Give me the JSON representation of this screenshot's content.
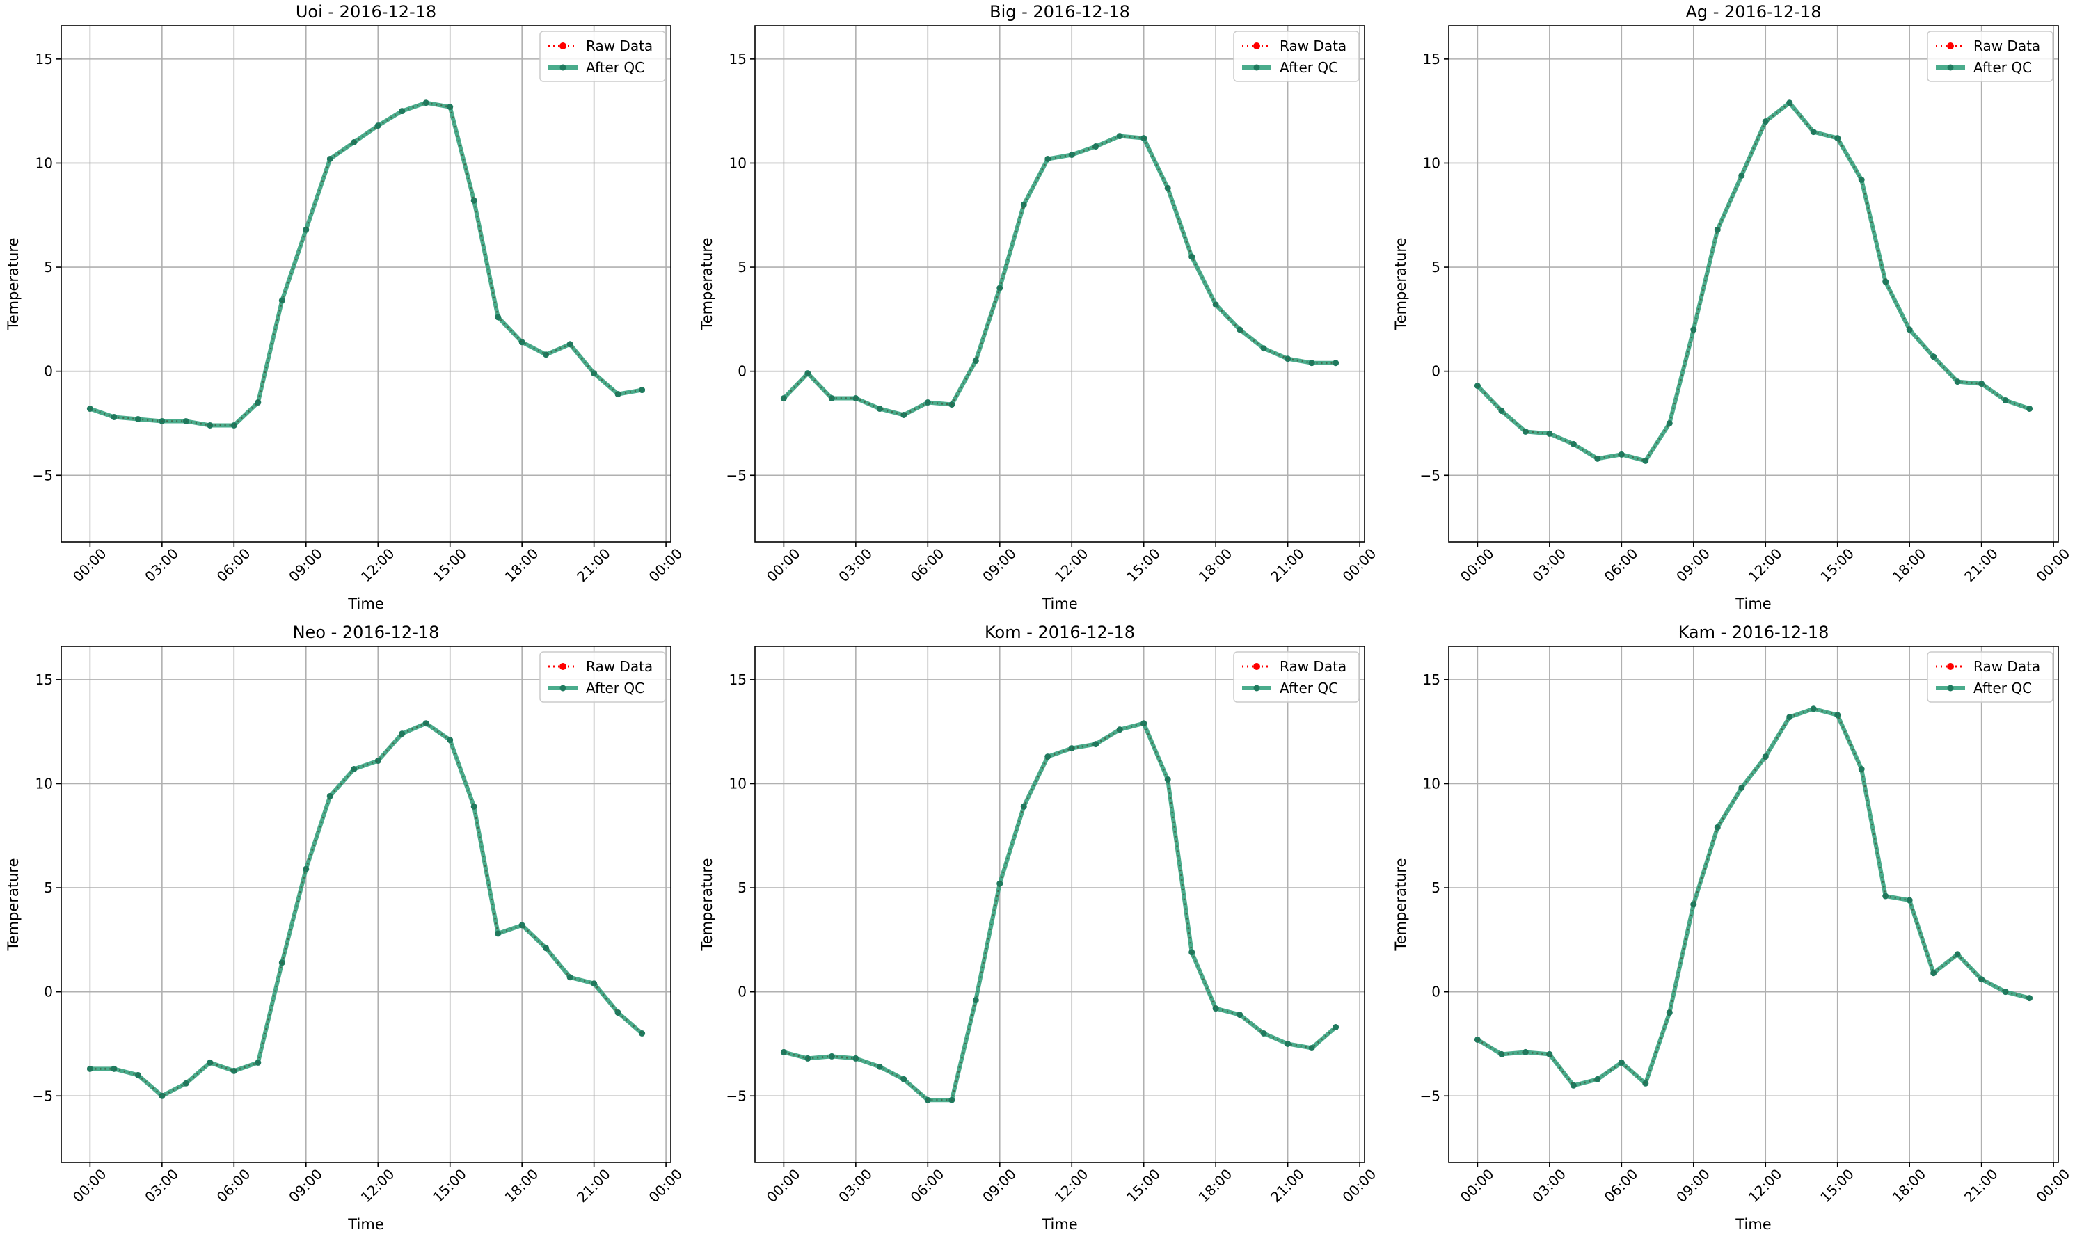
{
  "colors": {
    "raw": "#ff0000",
    "after_qc": "#2a9d78",
    "after_qc_marker": "#1f7a5e",
    "grid": "#b0b0b0",
    "axis": "#000000"
  },
  "chart_data": [
    {
      "type": "line",
      "title": "Uoi - 2016-12-18",
      "xlabel": "Time",
      "ylabel": "Temperature",
      "x_ticks": [
        "00:00",
        "03:00",
        "06:00",
        "09:00",
        "12:00",
        "15:00",
        "18:00",
        "21:00",
        "00:00"
      ],
      "y_ticks": [
        -5,
        0,
        5,
        10,
        15
      ],
      "ylim": [
        -8.2,
        16.6
      ],
      "xlim_hours": [
        -1.2,
        24.2
      ],
      "grid": true,
      "legend": "top-right",
      "x_hours": [
        0,
        1,
        2,
        3,
        4,
        5,
        6,
        7,
        8,
        9,
        10,
        11,
        12,
        13,
        14,
        15,
        16,
        17,
        18,
        19,
        20,
        21,
        22,
        23
      ],
      "series": [
        {
          "name": "Raw Data",
          "values": [
            -1.8,
            -2.2,
            -2.3,
            -2.4,
            -2.4,
            -2.6,
            -2.6,
            -1.5,
            3.4,
            6.8,
            10.2,
            11.0,
            11.8,
            12.5,
            12.9,
            12.7,
            8.2,
            2.6,
            1.4,
            0.8,
            1.3,
            -0.1,
            -1.1,
            -0.9
          ]
        },
        {
          "name": "After QC",
          "values": [
            -1.8,
            -2.2,
            -2.3,
            -2.4,
            -2.4,
            -2.6,
            -2.6,
            -1.5,
            3.4,
            6.8,
            10.2,
            11.0,
            11.8,
            12.5,
            12.9,
            12.7,
            8.2,
            2.6,
            1.4,
            0.8,
            1.3,
            -0.1,
            -1.1,
            -0.9
          ]
        }
      ]
    },
    {
      "type": "line",
      "title": "Big - 2016-12-18",
      "xlabel": "Time",
      "ylabel": "Temperature",
      "x_ticks": [
        "00:00",
        "03:00",
        "06:00",
        "09:00",
        "12:00",
        "15:00",
        "18:00",
        "21:00",
        "00:00"
      ],
      "y_ticks": [
        -5,
        0,
        5,
        10,
        15
      ],
      "ylim": [
        -8.2,
        16.6
      ],
      "xlim_hours": [
        -1.2,
        24.2
      ],
      "grid": true,
      "legend": "top-right",
      "x_hours": [
        0,
        1,
        2,
        3,
        4,
        5,
        6,
        7,
        8,
        9,
        10,
        11,
        12,
        13,
        14,
        15,
        16,
        17,
        18,
        19,
        20,
        21,
        22,
        23
      ],
      "series": [
        {
          "name": "Raw Data",
          "values": [
            -1.3,
            -0.1,
            -1.3,
            -1.3,
            -1.8,
            -2.1,
            -1.5,
            -1.6,
            0.5,
            4.0,
            8.0,
            10.2,
            10.4,
            10.8,
            11.3,
            11.2,
            8.8,
            5.5,
            3.2,
            2.0,
            1.1,
            0.6,
            0.4,
            0.4
          ]
        },
        {
          "name": "After QC",
          "values": [
            -1.3,
            -0.1,
            -1.3,
            -1.3,
            -1.8,
            -2.1,
            -1.5,
            -1.6,
            0.5,
            4.0,
            8.0,
            10.2,
            10.4,
            10.8,
            11.3,
            11.2,
            8.8,
            5.5,
            3.2,
            2.0,
            1.1,
            0.6,
            0.4,
            0.4
          ]
        }
      ]
    },
    {
      "type": "line",
      "title": "Ag - 2016-12-18",
      "xlabel": "Time",
      "ylabel": "Temperature",
      "x_ticks": [
        "00:00",
        "03:00",
        "06:00",
        "09:00",
        "12:00",
        "15:00",
        "18:00",
        "21:00",
        "00:00"
      ],
      "y_ticks": [
        -5,
        0,
        5,
        10,
        15
      ],
      "ylim": [
        -8.2,
        16.6
      ],
      "xlim_hours": [
        -1.2,
        24.2
      ],
      "grid": true,
      "legend": "top-right",
      "x_hours": [
        0,
        1,
        2,
        3,
        4,
        5,
        6,
        7,
        8,
        9,
        10,
        11,
        12,
        13,
        14,
        15,
        16,
        17,
        18,
        19,
        20,
        21,
        22,
        23
      ],
      "series": [
        {
          "name": "Raw Data",
          "values": [
            -0.7,
            -1.9,
            -2.9,
            -3.0,
            -3.5,
            -4.2,
            -4.0,
            -4.3,
            -2.5,
            2.0,
            6.8,
            9.4,
            12.0,
            12.9,
            11.5,
            11.2,
            9.2,
            4.3,
            2.0,
            0.7,
            -0.5,
            -0.6,
            -1.4,
            -1.8
          ]
        },
        {
          "name": "After QC",
          "values": [
            -0.7,
            -1.9,
            -2.9,
            -3.0,
            -3.5,
            -4.2,
            -4.0,
            -4.3,
            -2.5,
            2.0,
            6.8,
            9.4,
            12.0,
            12.9,
            11.5,
            11.2,
            9.2,
            4.3,
            2.0,
            0.7,
            -0.5,
            -0.6,
            -1.4,
            -1.8
          ]
        }
      ]
    },
    {
      "type": "line",
      "title": "Neo - 2016-12-18",
      "xlabel": "Time",
      "ylabel": "Temperature",
      "x_ticks": [
        "00:00",
        "03:00",
        "06:00",
        "09:00",
        "12:00",
        "15:00",
        "18:00",
        "21:00",
        "00:00"
      ],
      "y_ticks": [
        -5,
        0,
        5,
        10,
        15
      ],
      "ylim": [
        -8.2,
        16.6
      ],
      "xlim_hours": [
        -1.2,
        24.2
      ],
      "grid": true,
      "legend": "top-right",
      "x_hours": [
        0,
        1,
        2,
        3,
        4,
        5,
        6,
        7,
        8,
        9,
        10,
        11,
        12,
        13,
        14,
        15,
        16,
        17,
        18,
        19,
        20,
        21,
        22,
        23
      ],
      "series": [
        {
          "name": "Raw Data",
          "values": [
            -3.7,
            -3.7,
            -4.0,
            -5.0,
            -4.4,
            -3.4,
            -3.8,
            -3.4,
            1.4,
            5.9,
            9.4,
            10.7,
            11.1,
            12.4,
            12.9,
            12.1,
            8.9,
            2.8,
            3.2,
            2.1,
            0.7,
            0.4,
            -1.0,
            -2.0
          ]
        },
        {
          "name": "After QC",
          "values": [
            -3.7,
            -3.7,
            -4.0,
            -5.0,
            -4.4,
            -3.4,
            -3.8,
            -3.4,
            1.4,
            5.9,
            9.4,
            10.7,
            11.1,
            12.4,
            12.9,
            12.1,
            8.9,
            2.8,
            3.2,
            2.1,
            0.7,
            0.4,
            -1.0,
            -2.0
          ]
        }
      ]
    },
    {
      "type": "line",
      "title": "Kom - 2016-12-18",
      "xlabel": "Time",
      "ylabel": "Temperature",
      "x_ticks": [
        "00:00",
        "03:00",
        "06:00",
        "09:00",
        "12:00",
        "15:00",
        "18:00",
        "21:00",
        "00:00"
      ],
      "y_ticks": [
        -5,
        0,
        5,
        10,
        15
      ],
      "ylim": [
        -8.2,
        16.6
      ],
      "xlim_hours": [
        -1.2,
        24.2
      ],
      "grid": true,
      "legend": "top-right",
      "x_hours": [
        0,
        1,
        2,
        3,
        4,
        5,
        6,
        7,
        8,
        9,
        10,
        11,
        12,
        13,
        14,
        15,
        16,
        17,
        18,
        19,
        20,
        21,
        22,
        23
      ],
      "series": [
        {
          "name": "Raw Data",
          "values": [
            -2.9,
            -3.2,
            -3.1,
            -3.2,
            -3.6,
            -4.2,
            -5.2,
            -5.2,
            -0.4,
            5.2,
            8.9,
            11.3,
            11.7,
            11.9,
            12.6,
            12.9,
            10.2,
            1.9,
            -0.8,
            -1.1,
            -2.0,
            -2.5,
            -2.7,
            -1.7
          ]
        },
        {
          "name": "After QC",
          "values": [
            -2.9,
            -3.2,
            -3.1,
            -3.2,
            -3.6,
            -4.2,
            -5.2,
            -5.2,
            -0.4,
            5.2,
            8.9,
            11.3,
            11.7,
            11.9,
            12.6,
            12.9,
            10.2,
            1.9,
            -0.8,
            -1.1,
            -2.0,
            -2.5,
            -2.7,
            -1.7
          ]
        }
      ]
    },
    {
      "type": "line",
      "title": "Kam - 2016-12-18",
      "xlabel": "Time",
      "ylabel": "Temperature",
      "x_ticks": [
        "00:00",
        "03:00",
        "06:00",
        "09:00",
        "12:00",
        "15:00",
        "18:00",
        "21:00",
        "00:00"
      ],
      "y_ticks": [
        -5,
        0,
        5,
        10,
        15
      ],
      "ylim": [
        -8.2,
        16.6
      ],
      "xlim_hours": [
        -1.2,
        24.2
      ],
      "grid": true,
      "legend": "top-right",
      "x_hours": [
        0,
        1,
        2,
        3,
        4,
        5,
        6,
        7,
        8,
        9,
        10,
        11,
        12,
        13,
        14,
        15,
        16,
        17,
        18,
        19,
        20,
        21,
        22,
        23
      ],
      "series": [
        {
          "name": "Raw Data",
          "values": [
            -2.3,
            -3.0,
            -2.9,
            -3.0,
            -4.5,
            -4.2,
            -3.4,
            -4.4,
            -1.0,
            4.2,
            7.9,
            9.8,
            11.3,
            13.2,
            13.6,
            13.3,
            10.7,
            4.6,
            4.4,
            0.9,
            1.8,
            0.6,
            0.0,
            -0.3
          ]
        },
        {
          "name": "After QC",
          "values": [
            -2.3,
            -3.0,
            -2.9,
            -3.0,
            -4.5,
            -4.2,
            -3.4,
            -4.4,
            -1.0,
            4.2,
            7.9,
            9.8,
            11.3,
            13.2,
            13.6,
            13.3,
            10.7,
            4.6,
            4.4,
            0.9,
            1.8,
            0.6,
            0.0,
            -0.3
          ]
        }
      ]
    }
  ]
}
